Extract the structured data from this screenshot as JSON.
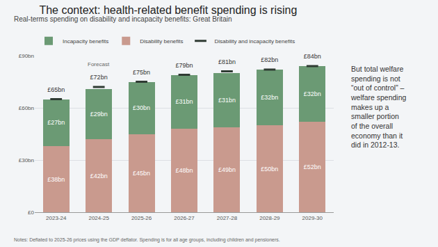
{
  "chart_data": {
    "type": "bar",
    "title": "The context: health-related benefit spending is rising",
    "subtitle": "Real-terms spending on disability and incapacity benefits: Great Britain",
    "categories": [
      "2023-24",
      "2024-25",
      "2025-26",
      "2026-27",
      "2027-28",
      "2028-29",
      "2029-30"
    ],
    "series": [
      {
        "name": "Disability benefits",
        "color": "#c99a8e",
        "values": [
          38,
          42,
          45,
          48,
          49,
          50,
          52
        ],
        "value_labels": [
          "£38bn",
          "£42bn",
          "£45bn",
          "£48bn",
          "£49bn",
          "£50bn",
          "£52bn"
        ]
      },
      {
        "name": "Incapacity benefits",
        "color": "#6b9a74",
        "values": [
          27,
          29,
          30,
          31,
          31,
          32,
          32
        ],
        "value_labels": [
          "£27bn",
          "£29bn",
          "£30bn",
          "£31bn",
          "£31bn",
          "£32bn",
          "£32bn"
        ]
      },
      {
        "name": "Disability and incapacity benefits",
        "type": "scatter",
        "marker": "line-ew",
        "color": "#2f3b33",
        "values": [
          65,
          72,
          75,
          79,
          81,
          82,
          84
        ],
        "value_labels": [
          "£65bn",
          "£72bn",
          "£75bn",
          "£79bn",
          "£81bn",
          "£82bn",
          "£84bn"
        ]
      }
    ],
    "stacked": true,
    "data_labels": true,
    "ylim": [
      0,
      90
    ],
    "yticks": [
      {
        "value": 0,
        "label": "£0"
      },
      {
        "value": 30,
        "label": "£30bn"
      },
      {
        "value": 60,
        "label": "£60bn"
      },
      {
        "value": 90,
        "label": "£90bn"
      }
    ],
    "grid": true,
    "legend": "top",
    "annotations": [
      {
        "text": "Forecast",
        "category": "2024-25"
      }
    ],
    "note": [
      "But total welfare",
      "spending is not",
      "“out of control” –",
      "welfare spending",
      "makes up a",
      "smaller portion",
      "of the overall",
      "economy than it",
      "did in 2012-13."
    ],
    "footnote": "Notes: Deflated to 2025-26 prices using the GDP deflator. Spending is for all age groups, including children and pensioners."
  }
}
